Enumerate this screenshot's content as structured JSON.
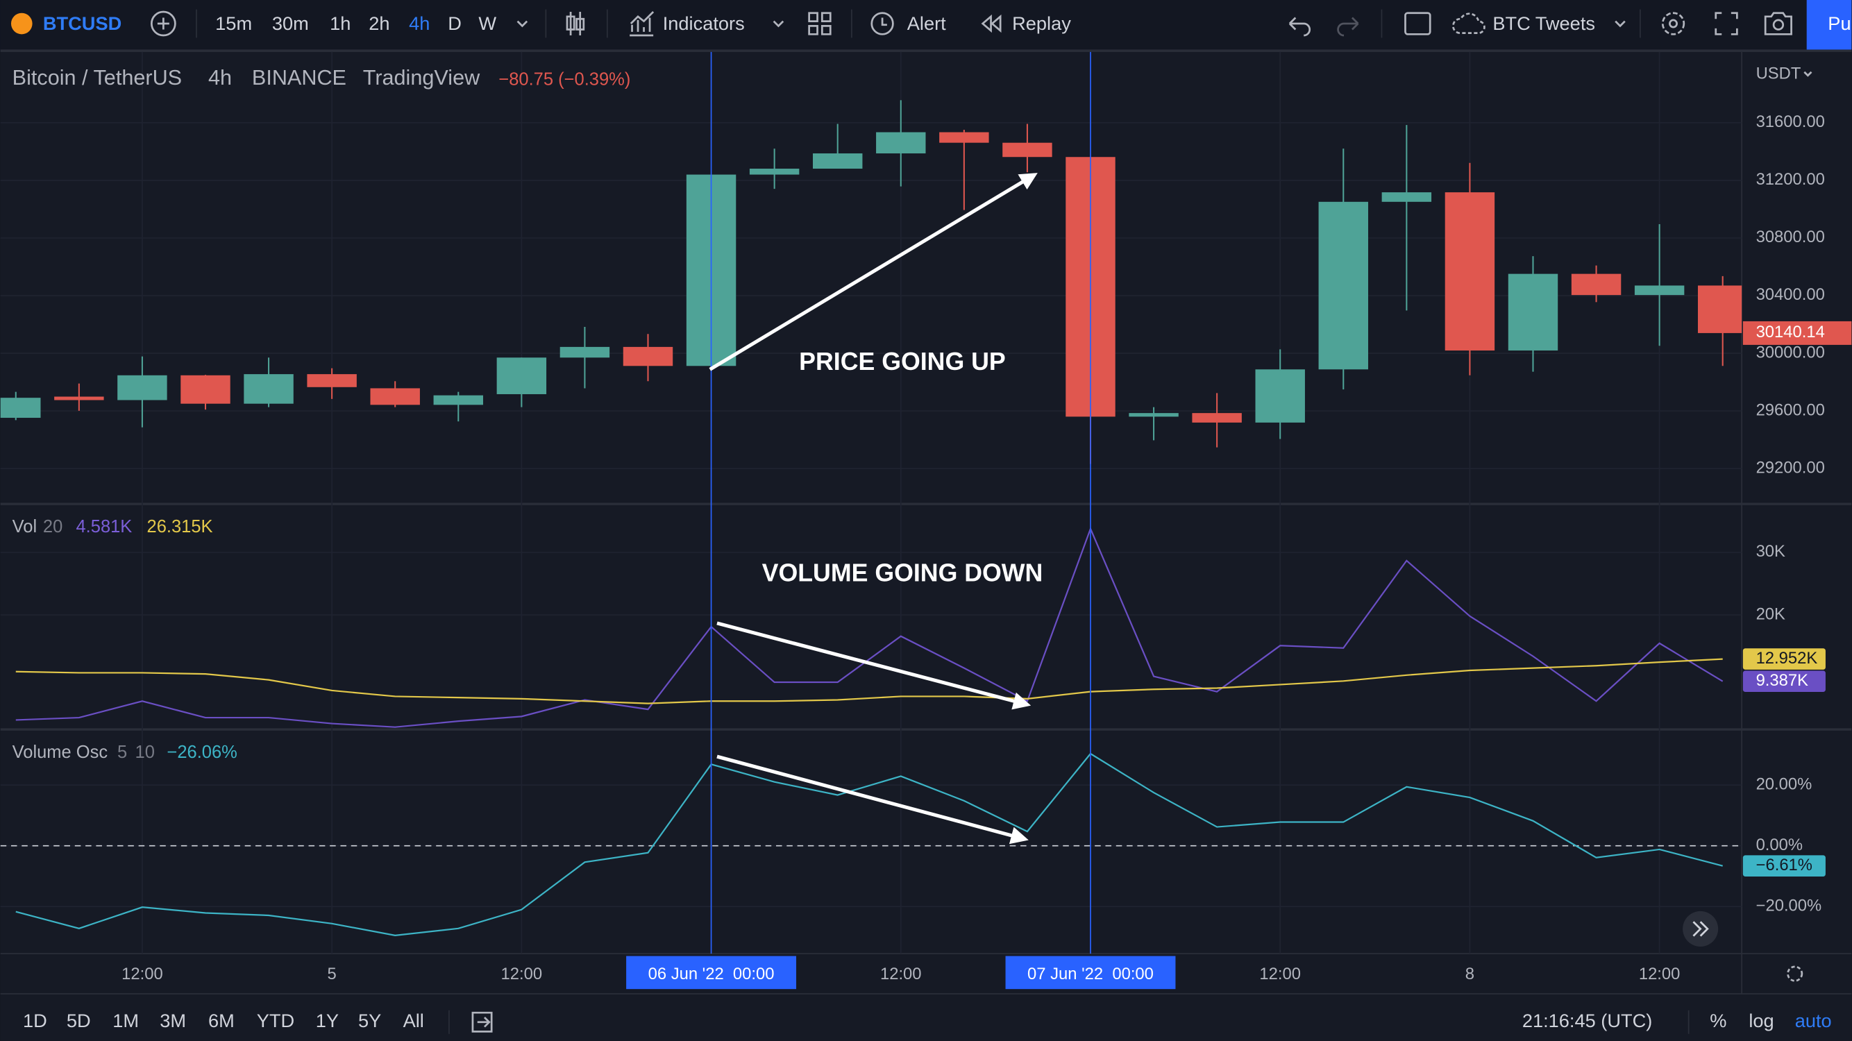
{
  "toolbar": {
    "symbol": "BTCUSD",
    "intervals": [
      "15m",
      "30m",
      "1h",
      "2h",
      "4h",
      "D",
      "W"
    ],
    "indicators": "Indicators",
    "alert": "Alert",
    "replay": "Replay",
    "layout_name": "BTC Tweets",
    "publish": "Pu"
  },
  "legend": {
    "name": "Bitcoin / TetherUS",
    "interval": "4h",
    "exchange": "BINANCE",
    "source": "TradingView",
    "change": "−80.75 (−0.39%)"
  },
  "currency": "USDT",
  "annotations": [
    "PRICE GOING UP",
    "VOLUME GOING DOWN"
  ],
  "chart_data": [
    {
      "type": "candlestick",
      "categories": [
        null,
        null,
        "12:00",
        null,
        null,
        "5",
        null,
        null,
        "12:00",
        null,
        null,
        "06 Jun '22  00:00",
        null,
        null,
        "12:00",
        null,
        null,
        "07 Jun '22  00:00",
        null,
        null,
        "12:00",
        null,
        null,
        "8",
        null,
        null,
        "12:00",
        null
      ],
      "highlighted": [
        11,
        17
      ],
      "open": [
        29552,
        29699,
        29675,
        29847,
        29650,
        29855,
        29757,
        29642,
        29716,
        29970,
        30044,
        29912,
        31240,
        31281,
        31387,
        31534,
        31461,
        31362,
        29560,
        29585,
        29519,
        29888,
        31051,
        31117,
        30019,
        30551,
        30404,
        30470
      ],
      "high": [
        29732,
        29790,
        29978,
        29850,
        29970,
        29896,
        29806,
        29732,
        29970,
        30183,
        30134,
        31240,
        31420,
        31592,
        31756,
        31551,
        31592,
        31362,
        29626,
        29724,
        30027,
        31420,
        31584,
        31321,
        30674,
        30609,
        30896,
        30535
      ],
      "low": [
        29536,
        29601,
        29486,
        29609,
        29626,
        29683,
        29626,
        29527,
        29626,
        29757,
        29806,
        29888,
        31141,
        31281,
        31158,
        30994,
        31256,
        29232,
        29396,
        29347,
        29405,
        29749,
        30297,
        29847,
        29872,
        30355,
        30052,
        29912
      ],
      "close": [
        29691,
        29675,
        29847,
        29650,
        29855,
        29765,
        29642,
        29708,
        29970,
        30044,
        29912,
        31240,
        31281,
        31387,
        31534,
        31461,
        31362,
        29560,
        29585,
        29519,
        29888,
        31051,
        31117,
        30019,
        30551,
        30404,
        30470,
        30140.14
      ],
      "up_color": "#4fa397",
      "down_color": "#e0574f",
      "ylim": [
        28954,
        32083
      ],
      "yticks": [
        {
          "value": 31600,
          "label": "31600.00"
        },
        {
          "value": 31200,
          "label": "31200.00"
        },
        {
          "value": 30800,
          "label": "30800.00"
        },
        {
          "value": 30400,
          "label": "30400.00"
        },
        {
          "value": 30000,
          "label": "30000.00"
        },
        {
          "value": 29600,
          "label": "29600.00"
        },
        {
          "value": 29200,
          "label": "29200.00"
        }
      ],
      "grid": true
    },
    {
      "type": "line",
      "title": "Vol",
      "params": "20",
      "legend_values": [
        "4.581K",
        "26.315K"
      ],
      "series": [
        {
          "name": "Volume",
          "color": "#6a4fc4",
          "last_value_label": "9.387K",
          "values": [
            3205,
            3582,
            6224,
            3582,
            3582,
            2638,
            2072,
            3016,
            3771,
            6413,
            4903,
            18112,
            9243,
            9243,
            16602,
            11507,
            6224,
            33774,
            10186,
            7733,
            15093,
            14715,
            28679,
            19810,
            13394,
            6224,
            15470,
            9387
          ]
        },
        {
          "name": "MA",
          "color": "#e3c84a",
          "last_value_label": "12.952K",
          "values": [
            10941,
            10753,
            10753,
            10564,
            9620,
            7922,
            6979,
            6790,
            6601,
            6224,
            5846,
            6224,
            6224,
            6413,
            6979,
            6979,
            6601,
            7733,
            8111,
            8300,
            8866,
            9432,
            10376,
            11131,
            11507,
            11885,
            12451,
            12952
          ]
        }
      ],
      "ylim": [
        1700,
        37550
      ],
      "yticks": [
        {
          "value": 30000,
          "label": "30K"
        },
        {
          "value": 20000,
          "label": "20K"
        }
      ],
      "grid": true
    },
    {
      "type": "line",
      "title": "Volume Osc",
      "params": [
        "5",
        "10"
      ],
      "legend_values": [
        "−26.06%"
      ],
      "series": [
        {
          "name": "Volume Osc",
          "color": "#3db4c6",
          "last_value_label": "−6.61%",
          "values": [
            -21.7,
            -27.2,
            -20.2,
            -22.1,
            -22.9,
            -25.6,
            -29.5,
            -27.2,
            -21.0,
            -5.4,
            -2.3,
            26.8,
            21.0,
            16.7,
            22.9,
            14.8,
            4.7,
            30.3,
            17.5,
            6.2,
            7.8,
            7.8,
            19.4,
            15.9,
            8.2,
            -3.9,
            -1.2,
            -6.61
          ]
        }
      ],
      "baseline": 0,
      "ylim": [
        -35.5,
        37.9
      ],
      "yticks": [
        {
          "value": 20,
          "label": "20.00%"
        },
        {
          "value": 0,
          "label": "0.00%"
        },
        {
          "value": -20,
          "label": "−20.00%"
        }
      ],
      "grid": true
    }
  ],
  "ranges": [
    "1D",
    "5D",
    "1M",
    "3M",
    "6M",
    "YTD",
    "1Y",
    "5Y",
    "All"
  ],
  "clock": "21:16:45 (UTC)",
  "scale_options": [
    "%",
    "log",
    "auto"
  ]
}
